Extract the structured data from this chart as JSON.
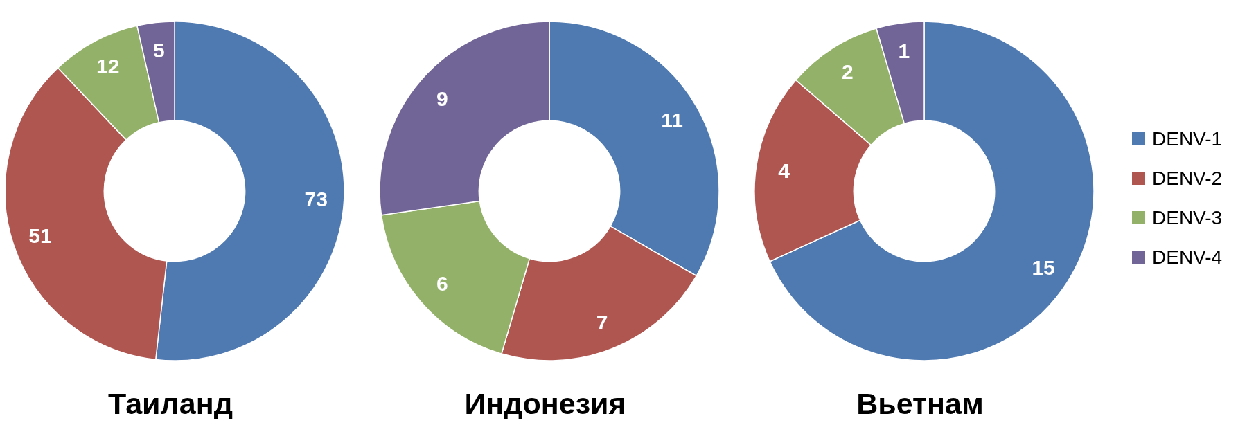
{
  "chart_data": [
    {
      "type": "donut",
      "title": "Таиланд",
      "categories": [
        null,
        null,
        null,
        null
      ],
      "values": [
        73,
        51,
        12,
        5
      ],
      "colors": [
        "#4e79b1",
        "#b05651",
        "#93b168",
        "#716496"
      ],
      "data_labels": true
    },
    {
      "type": "donut",
      "title": "Индонезия",
      "categories": [
        null,
        null,
        null,
        null
      ],
      "values": [
        11,
        7,
        6,
        9
      ],
      "colors": [
        "#4e79b1",
        "#b05651",
        "#93b168",
        "#716496"
      ],
      "data_labels": true
    },
    {
      "type": "donut",
      "title": "Вьетнам",
      "categories": [
        "DENV-1",
        "DENV-2",
        "DENV-3",
        "DENV-4"
      ],
      "values": [
        15,
        4,
        2,
        1
      ],
      "colors": [
        "#4e79b1",
        "#b05651",
        "#93b168",
        "#716496"
      ],
      "data_labels": true,
      "legend": "right"
    }
  ]
}
